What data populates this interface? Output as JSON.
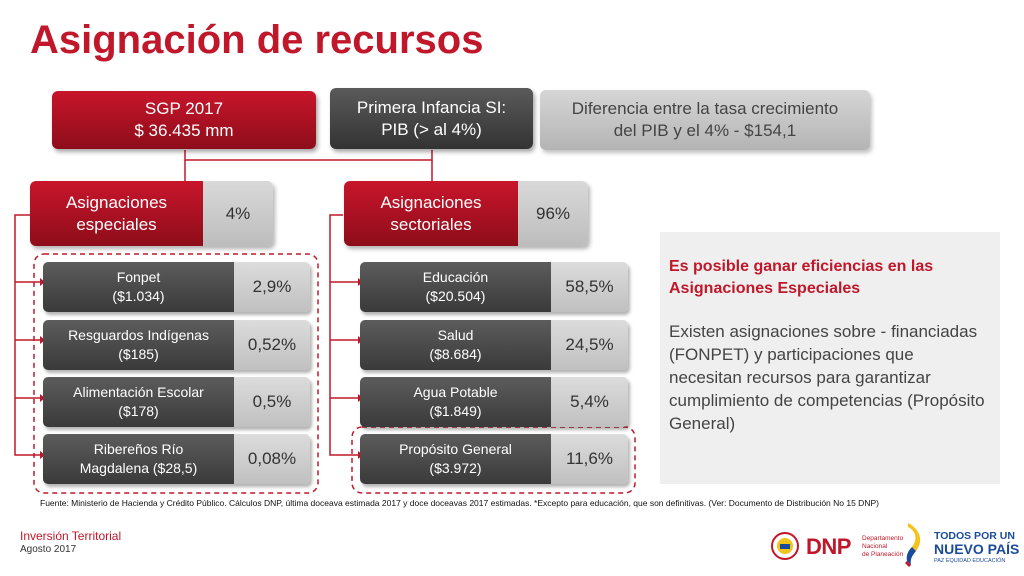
{
  "title": "Asignación de recursos",
  "top_boxes": {
    "sgp": {
      "line1": "SGP 2017",
      "line2": "$ 36.435 mm"
    },
    "primera_infancia": {
      "line1": "Primera Infancia SI:",
      "line2": "PIB (> al 4%)"
    },
    "diferencia": {
      "line1": "Diferencia entre la tasa crecimiento",
      "line2": "del PIB y el 4% - $154,1"
    }
  },
  "groups": [
    {
      "label_line1": "Asignaciones",
      "label_line2": "especiales",
      "percent": "4%",
      "items": [
        {
          "line1": "Fonpet",
          "line2": "($1.034)",
          "percent": "2,9%"
        },
        {
          "line1": "Resguardos Indígenas",
          "line2": "($185)",
          "percent": "0,52%"
        },
        {
          "line1": "Alimentación Escolar",
          "line2": "($178)",
          "percent": "0,5%"
        },
        {
          "line1": "Ribereños Río",
          "line2": "Magdalena ($28,5)",
          "percent": "0,08%"
        }
      ]
    },
    {
      "label_line1": "Asignaciones",
      "label_line2": "sectoriales",
      "percent": "96%",
      "items": [
        {
          "line1": "Educación",
          "line2": "($20.504)",
          "percent": "58,5%"
        },
        {
          "line1": "Salud",
          "line2": "($8.684)",
          "percent": "24,5%"
        },
        {
          "line1": "Agua Potable",
          "line2": "($1.849)",
          "percent": "5,4%"
        },
        {
          "line1": "Propósito General",
          "line2": "($3.972)",
          "percent": "11,6%"
        }
      ]
    }
  ],
  "note": {
    "heading": "Es posible ganar eficiencias en las Asignaciones Especiales",
    "body": "Existen asignaciones sobre - financiadas (FONPET) y participaciones que necesitan recursos para garantizar cumplimiento de competencias (Propósito General)"
  },
  "source": "Fuente: Ministerio de Hacienda y Crédito Público. Cálculos DNP, última doceava estimada 2017 y doce doceavas 2017 estimadas. *Excepto para educación, que son definitivas.  (Ver: Documento de Distribución No 15 DNP)",
  "footer": {
    "line1": "Inversión Territorial",
    "line2": "Agosto 2017"
  },
  "logos": {
    "dnp": {
      "acronym": "DNP",
      "text1": "Departamento",
      "text2": "Nacional",
      "text3": "de Planeación"
    },
    "gov": {
      "line1": "TODOS POR UN",
      "line2": "NUEVO PAÍS",
      "line3": "PAZ  EQUIDAD  EDUCACIÓN"
    }
  },
  "colors": {
    "accent": "#c0182a",
    "dark": "#3a3a3a",
    "gray": "#c4c4c4"
  }
}
